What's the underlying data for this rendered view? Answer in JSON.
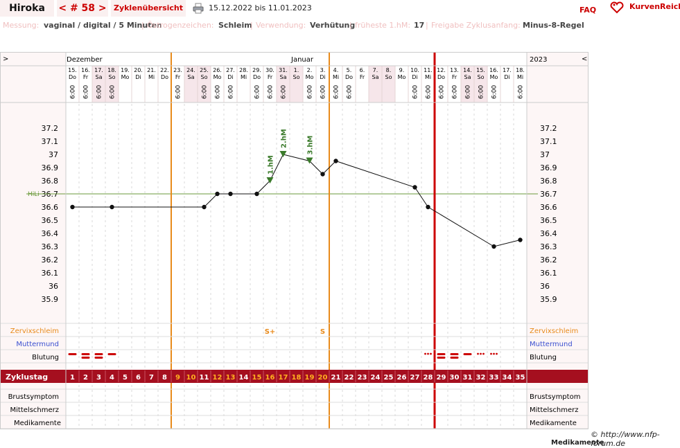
{
  "header": {
    "name": "Hiroka",
    "cycle": "< # 58 >",
    "overview": "Zyklenübersicht",
    "date_range": "15.12.2022 bis 11.01.2023",
    "faq": "FAQ",
    "logo": "KurvenReich"
  },
  "info": [
    {
      "key": "Messung:",
      "value": "vaginal / digital / 5 Minuten"
    },
    {
      "key": "Östrogenzeichen:",
      "value": "Schleim"
    },
    {
      "key": "Verwendung:",
      "value": "Verhütung"
    },
    {
      "key": "früheste 1.hM:",
      "value": "17"
    },
    {
      "key": "Freigabe Zyklusanfang:",
      "value": "Minus-8-Regel"
    }
  ],
  "months": {
    "left_arrow": ">",
    "dec": "Dezember",
    "jan": "Januar",
    "year": "2023",
    "right_arrow": "<"
  },
  "days": [
    {
      "d": "15.",
      "w": "Do",
      "t": "6:00"
    },
    {
      "d": "16.",
      "w": "Fr",
      "t": "6:00"
    },
    {
      "d": "17.",
      "w": "Sa",
      "t": "6:00"
    },
    {
      "d": "18.",
      "w": "So",
      "t": "6:00"
    },
    {
      "d": "19.",
      "w": "Mo",
      "t": ""
    },
    {
      "d": "20.",
      "w": "Di",
      "t": ""
    },
    {
      "d": "21.",
      "w": "Mi",
      "t": ""
    },
    {
      "d": "22.",
      "w": "Do",
      "t": ""
    },
    {
      "d": "23.",
      "w": "Fr",
      "t": "6:00"
    },
    {
      "d": "24.",
      "w": "Sa",
      "t": ""
    },
    {
      "d": "25.",
      "w": "So",
      "t": "6:00"
    },
    {
      "d": "26.",
      "w": "Mo",
      "t": "6:00"
    },
    {
      "d": "27.",
      "w": "Di",
      "t": "6:00"
    },
    {
      "d": "28.",
      "w": "Mi",
      "t": ""
    },
    {
      "d": "29.",
      "w": "Do",
      "t": "6:00"
    },
    {
      "d": "30.",
      "w": "Fr",
      "t": "6:00"
    },
    {
      "d": "31.",
      "w": "Sa",
      "t": "6:00"
    },
    {
      "d": "1.",
      "w": "So",
      "t": ""
    },
    {
      "d": "2.",
      "w": "Mo",
      "t": "6:00"
    },
    {
      "d": "3.",
      "w": "Di",
      "t": "6:00"
    },
    {
      "d": "4.",
      "w": "Mi",
      "t": "6:00"
    },
    {
      "d": "5.",
      "w": "Do",
      "t": "6:00"
    },
    {
      "d": "6.",
      "w": "Fr",
      "t": ""
    },
    {
      "d": "7.",
      "w": "Sa",
      "t": ""
    },
    {
      "d": "8.",
      "w": "So",
      "t": ""
    },
    {
      "d": "9.",
      "w": "Mo",
      "t": ""
    },
    {
      "d": "10.",
      "w": "Di",
      "t": "6:00"
    },
    {
      "d": "11.",
      "w": "Mi",
      "t": "6:00"
    },
    {
      "d": "12.",
      "w": "Do",
      "t": "6:00"
    },
    {
      "d": "13.",
      "w": "Fr",
      "t": "6:00"
    },
    {
      "d": "14.",
      "w": "Sa",
      "t": "6:00"
    },
    {
      "d": "15.",
      "w": "So",
      "t": "6:00"
    },
    {
      "d": "16.",
      "w": "Mo",
      "t": "6:00"
    },
    {
      "d": "17.",
      "w": "Di",
      "t": ""
    },
    {
      "d": "18.",
      "w": "Mi",
      "t": "6:00"
    }
  ],
  "chart_data": {
    "type": "line",
    "title": "",
    "xlabel": "",
    "ylabel": "",
    "yticks": [
      "37.2",
      "37.1",
      "37",
      "36.9",
      "36.8",
      "36.7",
      "36.6",
      "36.5",
      "36.4",
      "36.3",
      "36.2",
      "36.1",
      "36",
      "35.9"
    ],
    "ylim": [
      35.9,
      37.2
    ],
    "hili": {
      "label": "HiLi",
      "value": 36.7
    },
    "x": [
      1,
      4,
      11,
      12,
      13,
      15,
      16,
      17,
      19,
      20,
      21,
      27,
      28,
      33,
      35
    ],
    "values": [
      36.6,
      36.6,
      36.6,
      36.7,
      36.7,
      36.7,
      36.8,
      37.0,
      36.95,
      36.85,
      36.95,
      36.75,
      36.6,
      36.3,
      36.35
    ],
    "temp_markers": [
      {
        "day": 16,
        "label": "1.hM"
      },
      {
        "day": 17,
        "label": "2.hM"
      },
      {
        "day": 19,
        "label": "3.hM"
      }
    ],
    "vertical_lines": [
      {
        "after_day": 8,
        "color": "#e88a1a"
      },
      {
        "after_day": 20,
        "color": "#e88a1a"
      },
      {
        "after_day": 28,
        "color": "#cc0000"
      }
    ],
    "cervical_mucus": [
      {
        "day": 16,
        "label": "S+"
      },
      {
        "day": 20,
        "label": "S"
      }
    ],
    "bleeding": [
      {
        "day": 1,
        "level": 2
      },
      {
        "day": 2,
        "level": 3
      },
      {
        "day": 3,
        "level": 3
      },
      {
        "day": 4,
        "level": 2
      },
      {
        "day": 28,
        "level": 1
      },
      {
        "day": 29,
        "level": 3
      },
      {
        "day": 30,
        "level": 3
      },
      {
        "day": 31,
        "level": 2
      },
      {
        "day": 32,
        "level": 1
      },
      {
        "day": 33,
        "level": 1
      }
    ],
    "cycle_days": [
      "1",
      "2",
      "3",
      "4",
      "5",
      "6",
      "7",
      "8",
      "9",
      "10",
      "11",
      "12",
      "13",
      "14",
      "15",
      "16",
      "17",
      "18",
      "19",
      "20",
      "21",
      "22",
      "23",
      "24",
      "25",
      "26",
      "27",
      "28",
      "29",
      "30",
      "31",
      "32",
      "33",
      "34",
      "35"
    ],
    "highlight_days": [
      9,
      10,
      12,
      13,
      15,
      16,
      17,
      18,
      19,
      20
    ]
  },
  "rows": {
    "zervix": "Zervixschleim",
    "muttermund": "Muttermund",
    "blutung": "Blutung",
    "zyklustag": "Zyklustag",
    "brust": "Brustsymptom",
    "mittel": "Mittelschmerz",
    "medi": "Medikamente"
  },
  "footer": {
    "copyright": "© http://www.nfp-forum.de",
    "bottom": "Medikamente"
  },
  "colors": {
    "accent": "#cc0000",
    "zyklus_bar": "#a50f1f",
    "orange": "#e88a1a",
    "hili": "#6a9a3a",
    "marker": "#3a7a2a",
    "blue": "#3a4fd0"
  }
}
